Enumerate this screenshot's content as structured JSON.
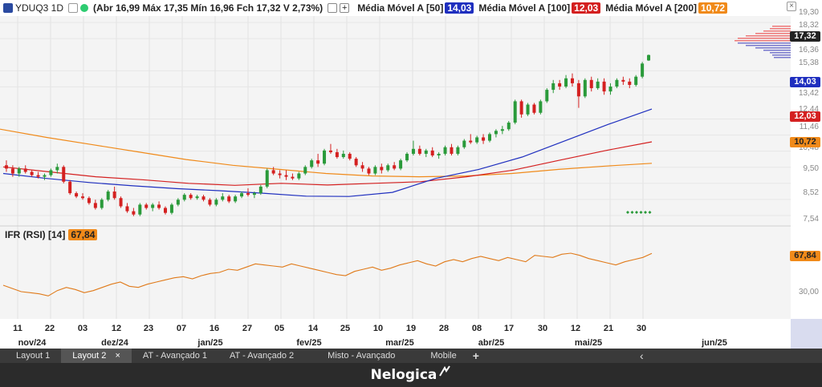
{
  "header": {
    "symbol": "YDUQ3 1D",
    "ohlc": "(Abr 16,99 Máx 17,35 Mín 16,96 Fch 17,32 V 2,73%)",
    "ma50_label": "Média Móvel A [50]",
    "ma50_value": "14,03",
    "ma100_label": "Média Móvel A [100]",
    "ma100_value": "12,03",
    "ma200_label": "Média Móvel A [200]",
    "ma200_value": "10,72"
  },
  "colors": {
    "ma50": "#1f2fbf",
    "ma100": "#d42020",
    "ma200": "#f08a1a",
    "up": "#2a9a3a",
    "down": "#d42020",
    "rsi": "#e07a1a"
  },
  "y_axis": [
    "19,30",
    "18,32",
    "16,36",
    "15,38",
    "13,42",
    "12,44",
    "11,46",
    "10,48",
    "9,50",
    "8,52",
    "7,54"
  ],
  "price_tags": {
    "last": "17,32",
    "ma50": "14,03",
    "ma100": "12,03",
    "ma200": "10,72"
  },
  "rsi": {
    "label": "IFR (RSI) [14]",
    "value": "67,84",
    "axis_value": "67,84",
    "axis_low": "30,00"
  },
  "x_axis": {
    "days": [
      "11",
      "22",
      "03",
      "12",
      "23",
      "07",
      "16",
      "27",
      "05",
      "14",
      "25",
      "10",
      "19",
      "28",
      "08",
      "17",
      "30",
      "12",
      "21",
      "30"
    ],
    "months": [
      "nov/24",
      "dez/24",
      "jan/25",
      "fev/25",
      "mar/25",
      "abr/25",
      "mai/25",
      "jun/25"
    ]
  },
  "tabs": [
    "Layout 1",
    "Layout 2",
    "AT - Avançado 1",
    "AT - Avançado 2",
    "Misto - Avançado",
    "Mobile"
  ],
  "tab_close": "×",
  "tab_add": "+",
  "collapse_arrow": "‹",
  "footer": {
    "logo": "Nelogica"
  },
  "chart_data": {
    "type": "candlestick",
    "title": "YDUQ3 1D",
    "ylim": [
      7.0,
      19.6
    ],
    "candles": [
      [
        10.6,
        10.9,
        10.2,
        10.4
      ],
      [
        10.4,
        10.6,
        9.9,
        10.1
      ],
      [
        10.1,
        10.5,
        9.9,
        10.4
      ],
      [
        10.4,
        10.6,
        10.1,
        10.2
      ],
      [
        10.2,
        10.3,
        9.9,
        10.0
      ],
      [
        10.0,
        10.2,
        9.8,
        9.9
      ],
      [
        9.9,
        10.1,
        9.7,
        10.0
      ],
      [
        10.0,
        10.4,
        9.9,
        10.3
      ],
      [
        10.3,
        10.7,
        10.1,
        10.5
      ],
      [
        10.5,
        10.6,
        9.5,
        9.6
      ],
      [
        9.6,
        9.7,
        8.8,
        8.9
      ],
      [
        8.9,
        9.0,
        8.6,
        8.7
      ],
      [
        8.7,
        8.9,
        8.5,
        8.6
      ],
      [
        8.6,
        8.7,
        8.2,
        8.3
      ],
      [
        8.3,
        8.5,
        7.9,
        8.0
      ],
      [
        8.0,
        8.6,
        7.9,
        8.5
      ],
      [
        8.5,
        9.1,
        8.4,
        9.0
      ],
      [
        9.0,
        9.3,
        8.5,
        8.6
      ],
      [
        8.6,
        8.7,
        8.0,
        8.1
      ],
      [
        8.1,
        8.3,
        7.7,
        7.8
      ],
      [
        7.8,
        8.0,
        7.5,
        7.6
      ],
      [
        7.6,
        8.3,
        7.5,
        8.2
      ],
      [
        8.2,
        8.3,
        7.9,
        8.0
      ],
      [
        8.0,
        8.3,
        7.8,
        8.2
      ],
      [
        8.2,
        8.4,
        7.9,
        8.0
      ],
      [
        8.0,
        8.1,
        7.6,
        7.7
      ],
      [
        7.7,
        8.3,
        7.6,
        8.2
      ],
      [
        8.2,
        8.6,
        8.1,
        8.5
      ],
      [
        8.5,
        8.9,
        8.4,
        8.8
      ],
      [
        8.8,
        8.9,
        8.5,
        8.6
      ],
      [
        8.6,
        8.8,
        8.5,
        8.7
      ],
      [
        8.7,
        8.8,
        8.4,
        8.5
      ],
      [
        8.5,
        8.6,
        8.1,
        8.2
      ],
      [
        8.2,
        8.6,
        8.1,
        8.5
      ],
      [
        8.5,
        8.9,
        8.4,
        8.7
      ],
      [
        8.7,
        8.8,
        8.3,
        8.4
      ],
      [
        8.4,
        8.8,
        8.3,
        8.7
      ],
      [
        8.7,
        9.0,
        8.6,
        8.9
      ],
      [
        8.9,
        9.2,
        8.7,
        8.8
      ],
      [
        8.8,
        9.0,
        8.6,
        8.9
      ],
      [
        8.9,
        9.4,
        8.8,
        9.3
      ],
      [
        9.3,
        10.4,
        9.2,
        10.3
      ],
      [
        10.3,
        10.5,
        10.0,
        10.1
      ],
      [
        10.1,
        10.3,
        9.8,
        10.0
      ],
      [
        10.0,
        10.3,
        9.7,
        9.9
      ],
      [
        9.9,
        10.1,
        9.7,
        9.8
      ],
      [
        9.8,
        10.2,
        9.7,
        10.1
      ],
      [
        10.1,
        10.6,
        10.0,
        10.5
      ],
      [
        10.5,
        11.0,
        10.4,
        10.9
      ],
      [
        10.9,
        11.3,
        10.5,
        10.7
      ],
      [
        10.7,
        11.6,
        10.6,
        11.5
      ],
      [
        11.5,
        11.9,
        11.3,
        11.4
      ],
      [
        11.4,
        11.6,
        11.0,
        11.1
      ],
      [
        11.1,
        11.5,
        11.0,
        11.3
      ],
      [
        11.3,
        11.4,
        10.9,
        11.0
      ],
      [
        11.0,
        11.1,
        10.5,
        10.6
      ],
      [
        10.6,
        10.8,
        10.2,
        10.4
      ],
      [
        10.4,
        10.5,
        10.0,
        10.1
      ],
      [
        10.1,
        10.6,
        10.0,
        10.5
      ],
      [
        10.5,
        10.7,
        10.1,
        10.3
      ],
      [
        10.3,
        10.7,
        10.2,
        10.6
      ],
      [
        10.6,
        10.8,
        10.3,
        10.4
      ],
      [
        10.4,
        11.0,
        10.3,
        10.9
      ],
      [
        10.9,
        11.4,
        10.8,
        11.3
      ],
      [
        11.3,
        12.1,
        11.2,
        11.6
      ],
      [
        11.6,
        11.8,
        11.2,
        11.3
      ],
      [
        11.3,
        11.6,
        11.1,
        11.5
      ],
      [
        11.5,
        11.7,
        11.1,
        11.2
      ],
      [
        11.2,
        11.4,
        11.0,
        11.3
      ],
      [
        11.3,
        11.8,
        11.2,
        11.7
      ],
      [
        11.7,
        11.9,
        11.2,
        11.3
      ],
      [
        11.3,
        11.8,
        11.2,
        11.7
      ],
      [
        11.7,
        12.2,
        11.6,
        12.1
      ],
      [
        12.1,
        12.5,
        11.9,
        12.0
      ],
      [
        12.0,
        12.4,
        11.9,
        12.3
      ],
      [
        12.3,
        12.5,
        11.9,
        12.1
      ],
      [
        12.1,
        12.6,
        12.0,
        12.5
      ],
      [
        12.5,
        12.8,
        12.3,
        12.7
      ],
      [
        12.7,
        13.0,
        12.5,
        12.8
      ],
      [
        12.8,
        13.3,
        12.7,
        13.2
      ],
      [
        13.2,
        14.6,
        13.1,
        14.5
      ],
      [
        14.5,
        14.6,
        13.5,
        13.7
      ],
      [
        13.7,
        14.4,
        13.6,
        14.3
      ],
      [
        14.3,
        14.4,
        13.7,
        13.8
      ],
      [
        13.8,
        14.6,
        13.7,
        14.5
      ],
      [
        14.5,
        15.3,
        14.4,
        15.2
      ],
      [
        15.2,
        15.8,
        15.0,
        15.6
      ],
      [
        15.6,
        15.8,
        15.2,
        15.4
      ],
      [
        15.4,
        16.1,
        15.3,
        15.9
      ],
      [
        15.9,
        16.2,
        15.4,
        15.6
      ],
      [
        15.6,
        15.8,
        14.1,
        14.8
      ],
      [
        14.8,
        15.9,
        14.7,
        15.8
      ],
      [
        15.8,
        16.0,
        15.1,
        15.3
      ],
      [
        15.3,
        15.9,
        15.2,
        15.7
      ],
      [
        15.7,
        15.9,
        14.9,
        15.1
      ],
      [
        15.1,
        15.6,
        14.9,
        15.4
      ],
      [
        15.4,
        15.9,
        15.3,
        15.8
      ],
      [
        15.8,
        16.0,
        15.5,
        15.7
      ],
      [
        15.7,
        15.9,
        15.3,
        15.5
      ],
      [
        15.5,
        16.1,
        15.4,
        16.0
      ],
      [
        16.0,
        16.9,
        15.9,
        16.8
      ],
      [
        16.99,
        17.35,
        16.96,
        17.32
      ]
    ],
    "ma50": [
      10.1,
      9.8,
      9.55,
      9.35,
      9.18,
      9.05,
      8.9,
      8.72,
      8.7,
      8.95,
      9.8,
      10.35,
      11.1,
      12.1,
      13.1,
      14.03
    ],
    "ma100": [
      10.5,
      10.2,
      9.9,
      9.72,
      9.5,
      9.38,
      9.5,
      9.4,
      9.5,
      9.6,
      9.9,
      10.3,
      10.9,
      11.5,
      12.03
    ],
    "ma200": [
      12.8,
      12.3,
      11.85,
      11.4,
      10.95,
      10.6,
      10.35,
      10.1,
      9.95,
      9.9,
      9.95,
      10.1,
      10.35,
      10.55,
      10.72
    ],
    "rsi_values": [
      38,
      35,
      32,
      31,
      30,
      28,
      33,
      36,
      34,
      31,
      33,
      36,
      39,
      41,
      37,
      36,
      39,
      41,
      43,
      45,
      46,
      44,
      47,
      49,
      50,
      53,
      52,
      55,
      58,
      57,
      56,
      55,
      58,
      56,
      54,
      52,
      50,
      48,
      47,
      51,
      53,
      55,
      52,
      54,
      57,
      59,
      61,
      58,
      56,
      60,
      62,
      60,
      63,
      65,
      63,
      61,
      64,
      62,
      60,
      66,
      65,
      64,
      67,
      68,
      66,
      63,
      61,
      59,
      57,
      60,
      62,
      64,
      67.84
    ]
  }
}
